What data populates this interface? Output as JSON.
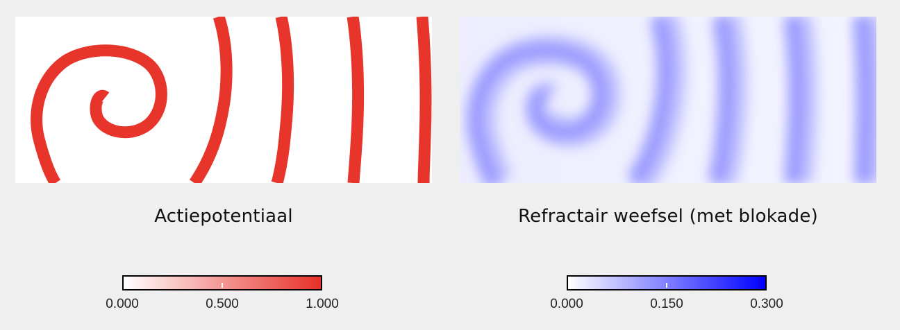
{
  "panels": [
    {
      "id": "action-potential",
      "title": "Actiepotentiaal",
      "colormap": {
        "low": "#ffffff",
        "high": "#e8302a"
      },
      "colorbar_ticks": [
        "0.000",
        "0.500",
        "1.000"
      ]
    },
    {
      "id": "refractory",
      "title": "Refractair weefsel (met blokade)",
      "colormap": {
        "low": "#ffffff",
        "high": "#0000ff"
      },
      "colorbar_ticks": [
        "0.000",
        "0.150",
        "0.300"
      ]
    }
  ]
}
